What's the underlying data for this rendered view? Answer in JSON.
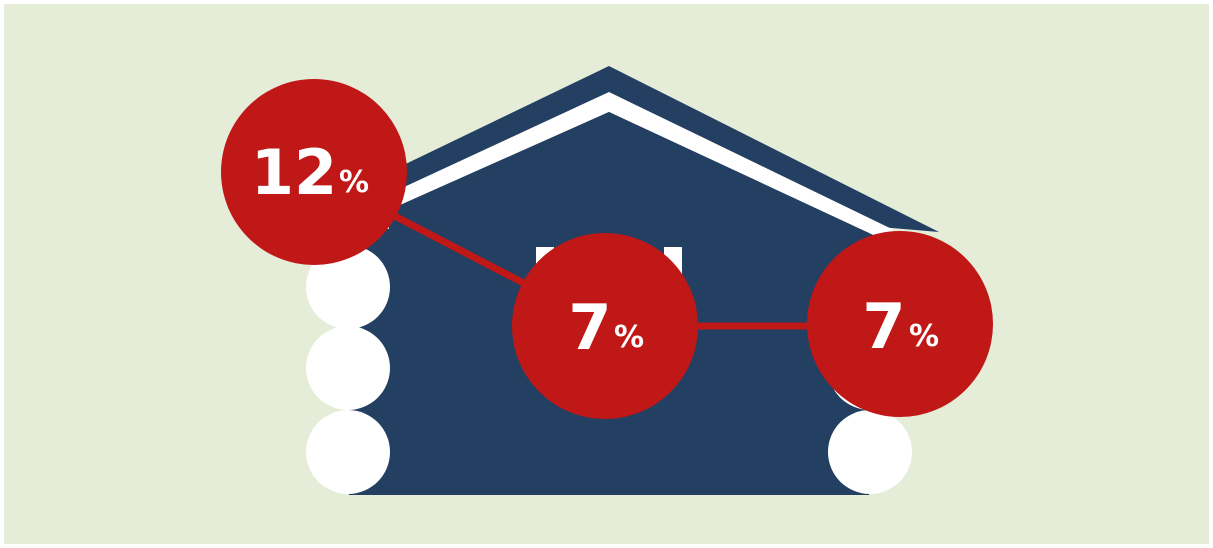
{
  "colors": {
    "background": "#e5ecd8",
    "house": "#233f61",
    "logs": "#ffffff",
    "bubble": "#c01717",
    "connector": "#c01717",
    "text": "#ffffff"
  },
  "icons": {
    "illustration": "log-cabin-icon"
  },
  "bubbles": [
    {
      "number": "12",
      "unit": "%"
    },
    {
      "number": "7",
      "unit": "%"
    },
    {
      "number": "7",
      "unit": "%"
    }
  ]
}
